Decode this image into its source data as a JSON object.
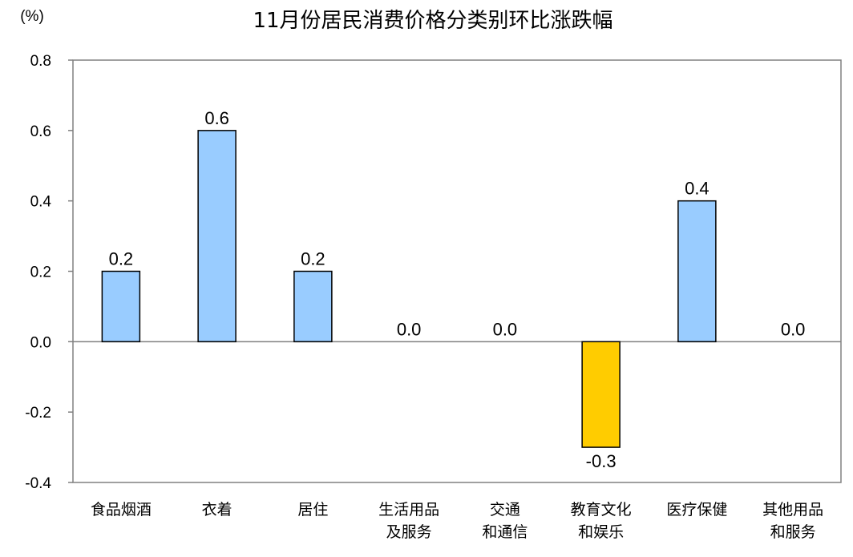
{
  "chart_data": {
    "type": "bar",
    "title": "11月份居民消费价格分类别环比涨跌幅",
    "unit": "(%)",
    "ylim": [
      -0.4,
      0.8
    ],
    "yticks": [
      "0.8",
      "0.6",
      "0.4",
      "0.2",
      "0.0",
      "-0.2",
      "-0.4"
    ],
    "grid": false,
    "categories": [
      [
        "食品烟酒"
      ],
      [
        "衣着"
      ],
      [
        "居住"
      ],
      [
        "生活用品",
        "及服务"
      ],
      [
        "交通",
        "和通信"
      ],
      [
        "教育文化",
        "和娱乐"
      ],
      [
        "医疗保健"
      ],
      [
        "其他用品",
        "和服务"
      ]
    ],
    "values": [
      0.2,
      0.6,
      0.2,
      0.0,
      0.0,
      -0.3,
      0.4,
      0.0
    ],
    "value_labels": [
      "0.2",
      "0.6",
      "0.2",
      "0.0",
      "0.0",
      "-0.3",
      "0.4",
      "0.0"
    ],
    "colors": {
      "positive": "#99CCFF",
      "negative": "#FFCC00",
      "stroke": "#000000"
    }
  }
}
